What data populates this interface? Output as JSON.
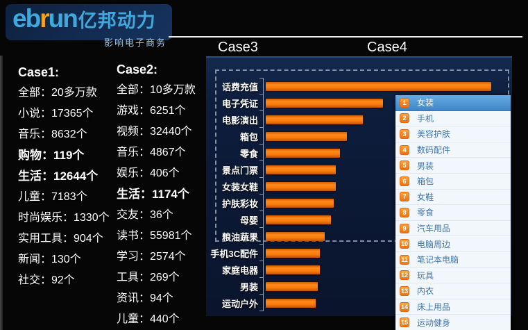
{
  "logo": {
    "brand_en_prefix": "eb",
    "brand_en_r": "r",
    "brand_en_suffix": "un",
    "brand_cn": "亿邦动力",
    "tagline": "影响电子商务"
  },
  "colors": {
    "panel_navy": "#0d1d3c",
    "bar_orange": "#f26b05",
    "rank_text_blue": "#4077ad",
    "rank_highlight_blue": "#4188c9",
    "badge_orange": "#ee7312"
  },
  "case1": {
    "title": "Case1:",
    "items": [
      {
        "text": "全部：20多万款",
        "bold": false
      },
      {
        "text": "小说：17365个",
        "bold": false
      },
      {
        "text": "音乐：8632个",
        "bold": false
      },
      {
        "text": "购物：119个",
        "bold": true
      },
      {
        "text": "生活：12644个",
        "bold": true
      },
      {
        "text": "儿童：7183个",
        "bold": false
      },
      {
        "text": "时尚娱乐：1330个",
        "bold": false
      },
      {
        "text": "实用工具：904个",
        "bold": false
      },
      {
        "text": "新闻：130个",
        "bold": false
      },
      {
        "text": "社交：92个",
        "bold": false
      }
    ]
  },
  "case2": {
    "title": "Case2:",
    "items": [
      {
        "text": "全部：10多万款",
        "bold": false
      },
      {
        "text": "游戏：6251个",
        "bold": false
      },
      {
        "text": "视频：32440个",
        "bold": false
      },
      {
        "text": "音乐：4867个",
        "bold": false
      },
      {
        "text": "娱乐：406个",
        "bold": false
      },
      {
        "text": "生活：1174个",
        "bold": true
      },
      {
        "text": "交友：36个",
        "bold": false
      },
      {
        "text": "读书：55981个",
        "bold": false
      },
      {
        "text": "学习：2574个",
        "bold": false
      },
      {
        "text": "工具：269个",
        "bold": false
      },
      {
        "text": "资讯：94个",
        "bold": false
      },
      {
        "text": "儿童：440个",
        "bold": false
      }
    ]
  },
  "case3": {
    "title": "Case3"
  },
  "case4": {
    "title": "Case4",
    "items": [
      {
        "rank": "1",
        "label": "女装",
        "highlighted": true
      },
      {
        "rank": "2",
        "label": "手机",
        "highlighted": false
      },
      {
        "rank": "3",
        "label": "美容护肤",
        "highlighted": false
      },
      {
        "rank": "4",
        "label": "数码配件",
        "highlighted": false
      },
      {
        "rank": "5",
        "label": "男装",
        "highlighted": false
      },
      {
        "rank": "6",
        "label": "箱包",
        "highlighted": false
      },
      {
        "rank": "7",
        "label": "女鞋",
        "highlighted": false
      },
      {
        "rank": "8",
        "label": "零食",
        "highlighted": false
      },
      {
        "rank": "9",
        "label": "汽车用品",
        "highlighted": false
      },
      {
        "rank": "10",
        "label": "电脑周边",
        "highlighted": false
      },
      {
        "rank": "11",
        "label": "笔记本电脑",
        "highlighted": false
      },
      {
        "rank": "12",
        "label": "玩具",
        "highlighted": false
      },
      {
        "rank": "13",
        "label": "内衣",
        "highlighted": false
      },
      {
        "rank": "14",
        "label": "床上用品",
        "highlighted": false
      },
      {
        "rank": "15",
        "label": "运动健身",
        "highlighted": false
      }
    ]
  },
  "chart_data": {
    "type": "bar",
    "orientation": "horizontal",
    "title": "Case3",
    "categories": [
      "话费充值",
      "电子凭证",
      "电影演出",
      "箱包",
      "零食",
      "景点门票",
      "女装女鞋",
      "护肤彩妆",
      "母婴",
      "粮油蔬果",
      "手机3C配件",
      "家庭电器",
      "男装",
      "运动户外"
    ],
    "values": [
      100,
      52,
      43,
      36,
      33,
      31,
      31,
      30,
      29,
      26,
      24,
      24,
      23,
      22
    ],
    "value_note": "relative bar lengths (chart shows no axis value labels)",
    "xlabel": "",
    "ylabel": "",
    "grid": false,
    "bar_color": "#f26b05",
    "legend": "none"
  }
}
